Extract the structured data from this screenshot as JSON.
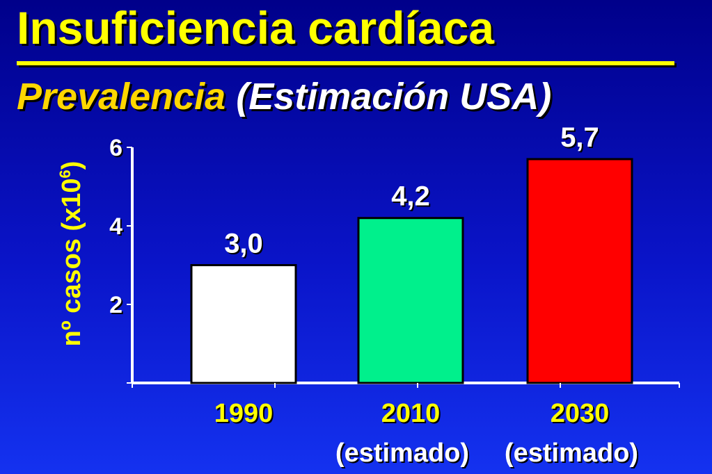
{
  "title": "Insuficiencia cardíaca",
  "subtitle": {
    "part1": "Prevalencia",
    "part2": "(Estimación USA)"
  },
  "colors": {
    "background": "#0a14c8",
    "title": "#ffff00",
    "subtitle_part1": "#ffd700",
    "bar_1990": "#ffffff",
    "bar_2010": "#00f08c",
    "bar_2030": "#ff0000"
  },
  "chart_data": {
    "type": "bar",
    "ylabel": "nº casos (x10",
    "ylabel_exp": "6",
    "ylabel_close": ")",
    "ylim": [
      0,
      6
    ],
    "yticks": [
      "2",
      "4",
      "6"
    ],
    "categories": [
      "1990",
      "2010",
      "2030"
    ],
    "notes": [
      "",
      "(estimado)",
      "(estimado)"
    ],
    "values": [
      3.0,
      4.2,
      5.7
    ],
    "data_labels": [
      "3,0",
      "4,2",
      "5,7"
    ],
    "grid": false,
    "legend": "none"
  }
}
